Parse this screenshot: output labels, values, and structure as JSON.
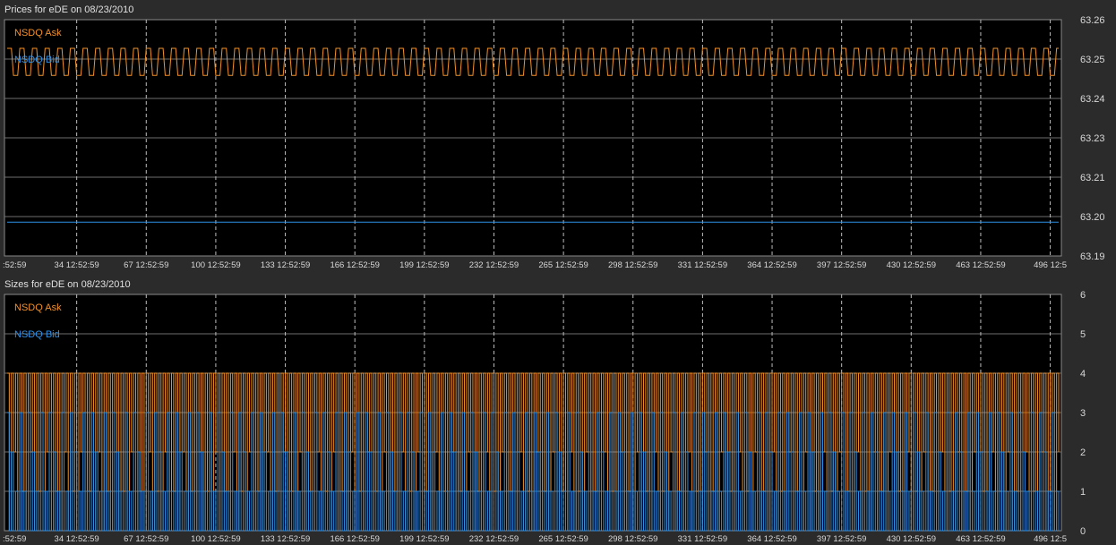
{
  "colors": {
    "background": "#2b2b2b",
    "plot_background": "#000000",
    "grid_horizontal": "#6e6e6e",
    "grid_vertical": "#bdbdbd",
    "axis_text": "#d8d8d8",
    "ask": "#f0902a",
    "bid": "#2f8fe6"
  },
  "chart_data": [
    {
      "type": "line",
      "title": "Prices for  eDE  on  08/23/2010",
      "x_tick_labels": [
        ":52:59",
        "34 12:52:59",
        "67 12:52:59",
        "100 12:52:59",
        "133 12:52:59",
        "166 12:52:59",
        "199 12:52:59",
        "232 12:52:59",
        "265 12:52:59",
        "298 12:52:59",
        "331 12:52:59",
        "364 12:52:59",
        "397 12:52:59",
        "430 12:52:59",
        "463 12:52:59",
        "496 12:5"
      ],
      "x_tick_values": [
        1,
        34,
        67,
        100,
        133,
        166,
        199,
        232,
        265,
        298,
        331,
        364,
        397,
        430,
        463,
        496
      ],
      "xlim": [
        1,
        500
      ],
      "y_tick_labels": [
        "63.19",
        "63.20",
        "63.21",
        "63.23",
        "63.24",
        "63.25",
        "63.26"
      ],
      "ylim": [
        63.19,
        63.26
      ],
      "grid": true,
      "legend": "top-left",
      "series": [
        {
          "name": "NSDQ Ask",
          "color_key": "ask",
          "pattern": "alternating",
          "step_length": 3,
          "values_cycle": [
            63.2515,
            63.2435
          ]
        },
        {
          "name": "NSDQ Bid",
          "color_key": "bid",
          "pattern": "constant",
          "values_cycle": [
            63.2
          ]
        }
      ]
    },
    {
      "type": "line",
      "title": "Sizes for  eDE  on  08/23/2010",
      "x_tick_labels": [
        ":52:59",
        "34 12:52:59",
        "67 12:52:59",
        "100 12:52:59",
        "133 12:52:59",
        "166 12:52:59",
        "199 12:52:59",
        "232 12:52:59",
        "265 12:52:59",
        "298 12:52:59",
        "331 12:52:59",
        "364 12:52:59",
        "397 12:52:59",
        "430 12:52:59",
        "463 12:52:59",
        "496 12:5"
      ],
      "x_tick_values": [
        1,
        34,
        67,
        100,
        133,
        166,
        199,
        232,
        265,
        298,
        331,
        364,
        397,
        430,
        463,
        496
      ],
      "xlim": [
        1,
        500
      ],
      "y_tick_labels": [
        "0",
        "1",
        "2",
        "3",
        "4",
        "5",
        "6"
      ],
      "ylim": [
        0,
        6
      ],
      "grid": true,
      "legend": "top-left",
      "series": [
        {
          "name": "NSDQ Ask",
          "color_key": "ask",
          "pattern": "cycle",
          "values_cycle": [
            4,
            0,
            4,
            2,
            4,
            0,
            4,
            1
          ]
        },
        {
          "name": "NSDQ Bid",
          "color_key": "bid",
          "pattern": "cycle",
          "values_cycle": [
            3,
            0,
            2,
            0,
            1,
            0,
            3,
            0,
            1,
            0
          ]
        }
      ]
    }
  ]
}
